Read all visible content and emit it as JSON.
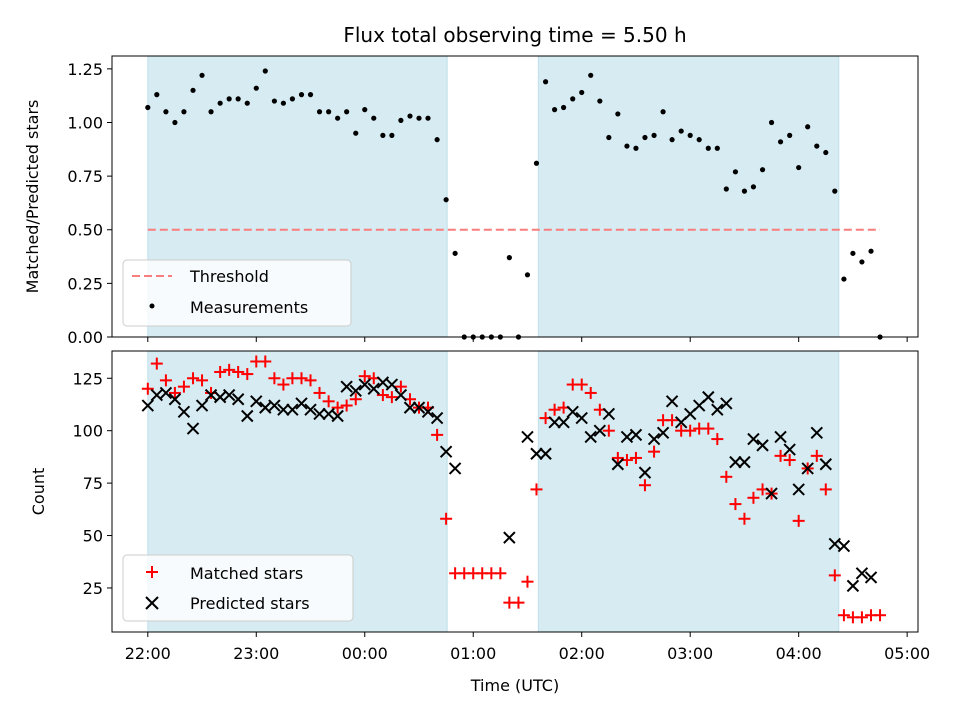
{
  "title": "Flux total observing time = 5.50 h",
  "chart_data": [
    {
      "type": "scatter",
      "panel": "top",
      "ylabel": "Matched/Predicted stars",
      "xlabel": "",
      "xlim": [
        21.67,
        29.1
      ],
      "ylim": [
        0.0,
        1.31
      ],
      "yticks": [
        0.0,
        0.25,
        0.5,
        0.75,
        1.0,
        1.25
      ],
      "ytick_labels": [
        "0.00",
        "0.25",
        "0.50",
        "0.75",
        "1.00",
        "1.25"
      ],
      "shaded_spans": [
        [
          22.0,
          24.76
        ],
        [
          25.6,
          28.37
        ]
      ],
      "threshold": {
        "label": "Threshold",
        "value": 0.5,
        "x_range": [
          22.0,
          28.75
        ],
        "color": "#f87e7e"
      },
      "legend": {
        "placement": "lower-left",
        "entries": [
          "Threshold",
          "Measurements"
        ]
      },
      "series": [
        {
          "name": "Measurements",
          "color": "#000000",
          "x": [
            22.0,
            22.083,
            22.167,
            22.25,
            22.333,
            22.417,
            22.5,
            22.583,
            22.667,
            22.75,
            22.833,
            22.917,
            23.0,
            23.083,
            23.167,
            23.25,
            23.333,
            23.417,
            23.5,
            23.583,
            23.667,
            23.75,
            23.833,
            23.917,
            24.0,
            24.083,
            24.167,
            24.25,
            24.333,
            24.417,
            24.5,
            24.583,
            24.667,
            24.75,
            24.833,
            24.917,
            25.0,
            25.083,
            25.167,
            25.25,
            25.333,
            25.417,
            25.5,
            25.583,
            25.667,
            25.75,
            25.833,
            25.917,
            26.0,
            26.083,
            26.167,
            26.25,
            26.333,
            26.417,
            26.5,
            26.583,
            26.667,
            26.75,
            26.833,
            26.917,
            27.0,
            27.083,
            27.167,
            27.25,
            27.333,
            27.417,
            27.5,
            27.583,
            27.667,
            27.75,
            27.833,
            27.917,
            28.0,
            28.083,
            28.167,
            28.25,
            28.333,
            28.417,
            28.5,
            28.583,
            28.667,
            28.75
          ],
          "y": [
            1.07,
            1.13,
            1.05,
            1.0,
            1.05,
            1.15,
            1.22,
            1.05,
            1.09,
            1.11,
            1.11,
            1.09,
            1.16,
            1.24,
            1.1,
            1.09,
            1.11,
            1.13,
            1.13,
            1.05,
            1.05,
            1.02,
            1.05,
            0.95,
            1.06,
            1.02,
            0.94,
            0.94,
            1.01,
            1.03,
            1.02,
            1.02,
            0.92,
            0.64,
            0.39,
            0.0,
            0.0,
            0.0,
            0.0,
            0.0,
            0.37,
            0.0,
            0.29,
            0.81,
            1.19,
            1.06,
            1.07,
            1.11,
            1.14,
            1.22,
            1.1,
            0.93,
            1.04,
            0.89,
            0.88,
            0.93,
            0.94,
            1.05,
            0.92,
            0.96,
            0.94,
            0.92,
            0.88,
            0.88,
            0.69,
            0.77,
            0.68,
            0.7,
            0.78,
            1.0,
            0.91,
            0.94,
            0.79,
            0.98,
            0.89,
            0.86,
            0.68,
            0.27,
            0.39,
            0.35,
            0.4,
            0.0
          ]
        }
      ]
    },
    {
      "type": "scatter",
      "panel": "bottom",
      "ylabel": "Count",
      "xlabel": "Time (UTC)",
      "xlim": [
        21.67,
        29.1
      ],
      "ylim": [
        4,
        138
      ],
      "yticks": [
        25,
        50,
        75,
        100,
        125
      ],
      "ytick_labels": [
        "25",
        "50",
        "75",
        "100",
        "125"
      ],
      "xticks": [
        22,
        23,
        24,
        25,
        26,
        27,
        28,
        29
      ],
      "xtick_labels": [
        "22:00",
        "23:00",
        "00:00",
        "01:00",
        "02:00",
        "03:00",
        "04:00",
        "05:00"
      ],
      "shaded_spans": [
        [
          22.0,
          24.76
        ],
        [
          25.6,
          28.37
        ]
      ],
      "legend": {
        "placement": "lower-left",
        "entries": [
          "Matched stars",
          "Predicted stars"
        ]
      },
      "series": [
        {
          "name": "Matched stars",
          "marker": "+",
          "color": "#ff0000",
          "x": [
            22.0,
            22.083,
            22.167,
            22.25,
            22.333,
            22.417,
            22.5,
            22.583,
            22.667,
            22.75,
            22.833,
            22.917,
            23.0,
            23.083,
            23.167,
            23.25,
            23.333,
            23.417,
            23.5,
            23.583,
            23.667,
            23.75,
            23.833,
            23.917,
            24.0,
            24.083,
            24.167,
            24.25,
            24.333,
            24.417,
            24.5,
            24.583,
            24.667,
            24.75,
            24.833,
            24.917,
            25.0,
            25.083,
            25.167,
            25.25,
            25.333,
            25.417,
            25.5,
            25.583,
            25.667,
            25.75,
            25.833,
            25.917,
            26.0,
            26.083,
            26.167,
            26.25,
            26.333,
            26.417,
            26.5,
            26.583,
            26.667,
            26.75,
            26.833,
            26.917,
            27.0,
            27.083,
            27.167,
            27.25,
            27.333,
            27.417,
            27.5,
            27.583,
            27.667,
            27.75,
            27.833,
            27.917,
            28.0,
            28.083,
            28.167,
            28.25,
            28.333,
            28.417,
            28.5,
            28.583,
            28.667,
            28.75
          ],
          "y": [
            120,
            132,
            124,
            118,
            121,
            125,
            124,
            118,
            128,
            129,
            128,
            127,
            133,
            133,
            125,
            122,
            125,
            125,
            124,
            118,
            114,
            111,
            112,
            115,
            126,
            125,
            117,
            116,
            121,
            115,
            111,
            111,
            98,
            58,
            32,
            32,
            32,
            32,
            32,
            32,
            18,
            18,
            28,
            72,
            106,
            110,
            111,
            122,
            122,
            118,
            110,
            100,
            87,
            86,
            87,
            74,
            90,
            105,
            105,
            100,
            100,
            101,
            101,
            96,
            78,
            65,
            58,
            68,
            72,
            70,
            88,
            86,
            57,
            82,
            88,
            72,
            31,
            12,
            11,
            11,
            12,
            12
          ]
        },
        {
          "name": "Predicted stars",
          "marker": "x",
          "color": "#000000",
          "x": [
            22.0,
            22.083,
            22.167,
            22.25,
            22.333,
            22.417,
            22.5,
            22.583,
            22.667,
            22.75,
            22.833,
            22.917,
            23.0,
            23.083,
            23.167,
            23.25,
            23.333,
            23.417,
            23.5,
            23.583,
            23.667,
            23.75,
            23.833,
            23.917,
            24.0,
            24.083,
            24.167,
            24.25,
            24.333,
            24.417,
            24.5,
            24.583,
            24.667,
            24.75,
            24.833,
            25.333,
            25.5,
            25.583,
            25.667,
            25.75,
            25.833,
            25.917,
            26.0,
            26.083,
            26.167,
            26.25,
            26.333,
            26.417,
            26.5,
            26.583,
            26.667,
            26.75,
            26.833,
            26.917,
            27.0,
            27.083,
            27.167,
            27.25,
            27.333,
            27.417,
            27.5,
            27.583,
            27.667,
            27.75,
            27.833,
            27.917,
            28.0,
            28.083,
            28.167,
            28.25,
            28.333,
            28.417,
            28.5,
            28.583,
            28.667
          ],
          "y": [
            112,
            117,
            118,
            115,
            109,
            101,
            112,
            117,
            116,
            117,
            115,
            107,
            114,
            111,
            112,
            110,
            110,
            113,
            110,
            108,
            108,
            107,
            121,
            119,
            122,
            120,
            123,
            122,
            117,
            111,
            111,
            109,
            106,
            90,
            82,
            49,
            97,
            89,
            89,
            104,
            104,
            109,
            106,
            97,
            100,
            108,
            84,
            97,
            98,
            80,
            96,
            99,
            114,
            104,
            108,
            112,
            116,
            110,
            113,
            85,
            85,
            96,
            93,
            70,
            97,
            91,
            72,
            82,
            99,
            84,
            46,
            45,
            26,
            32,
            30
          ]
        }
      ]
    }
  ]
}
